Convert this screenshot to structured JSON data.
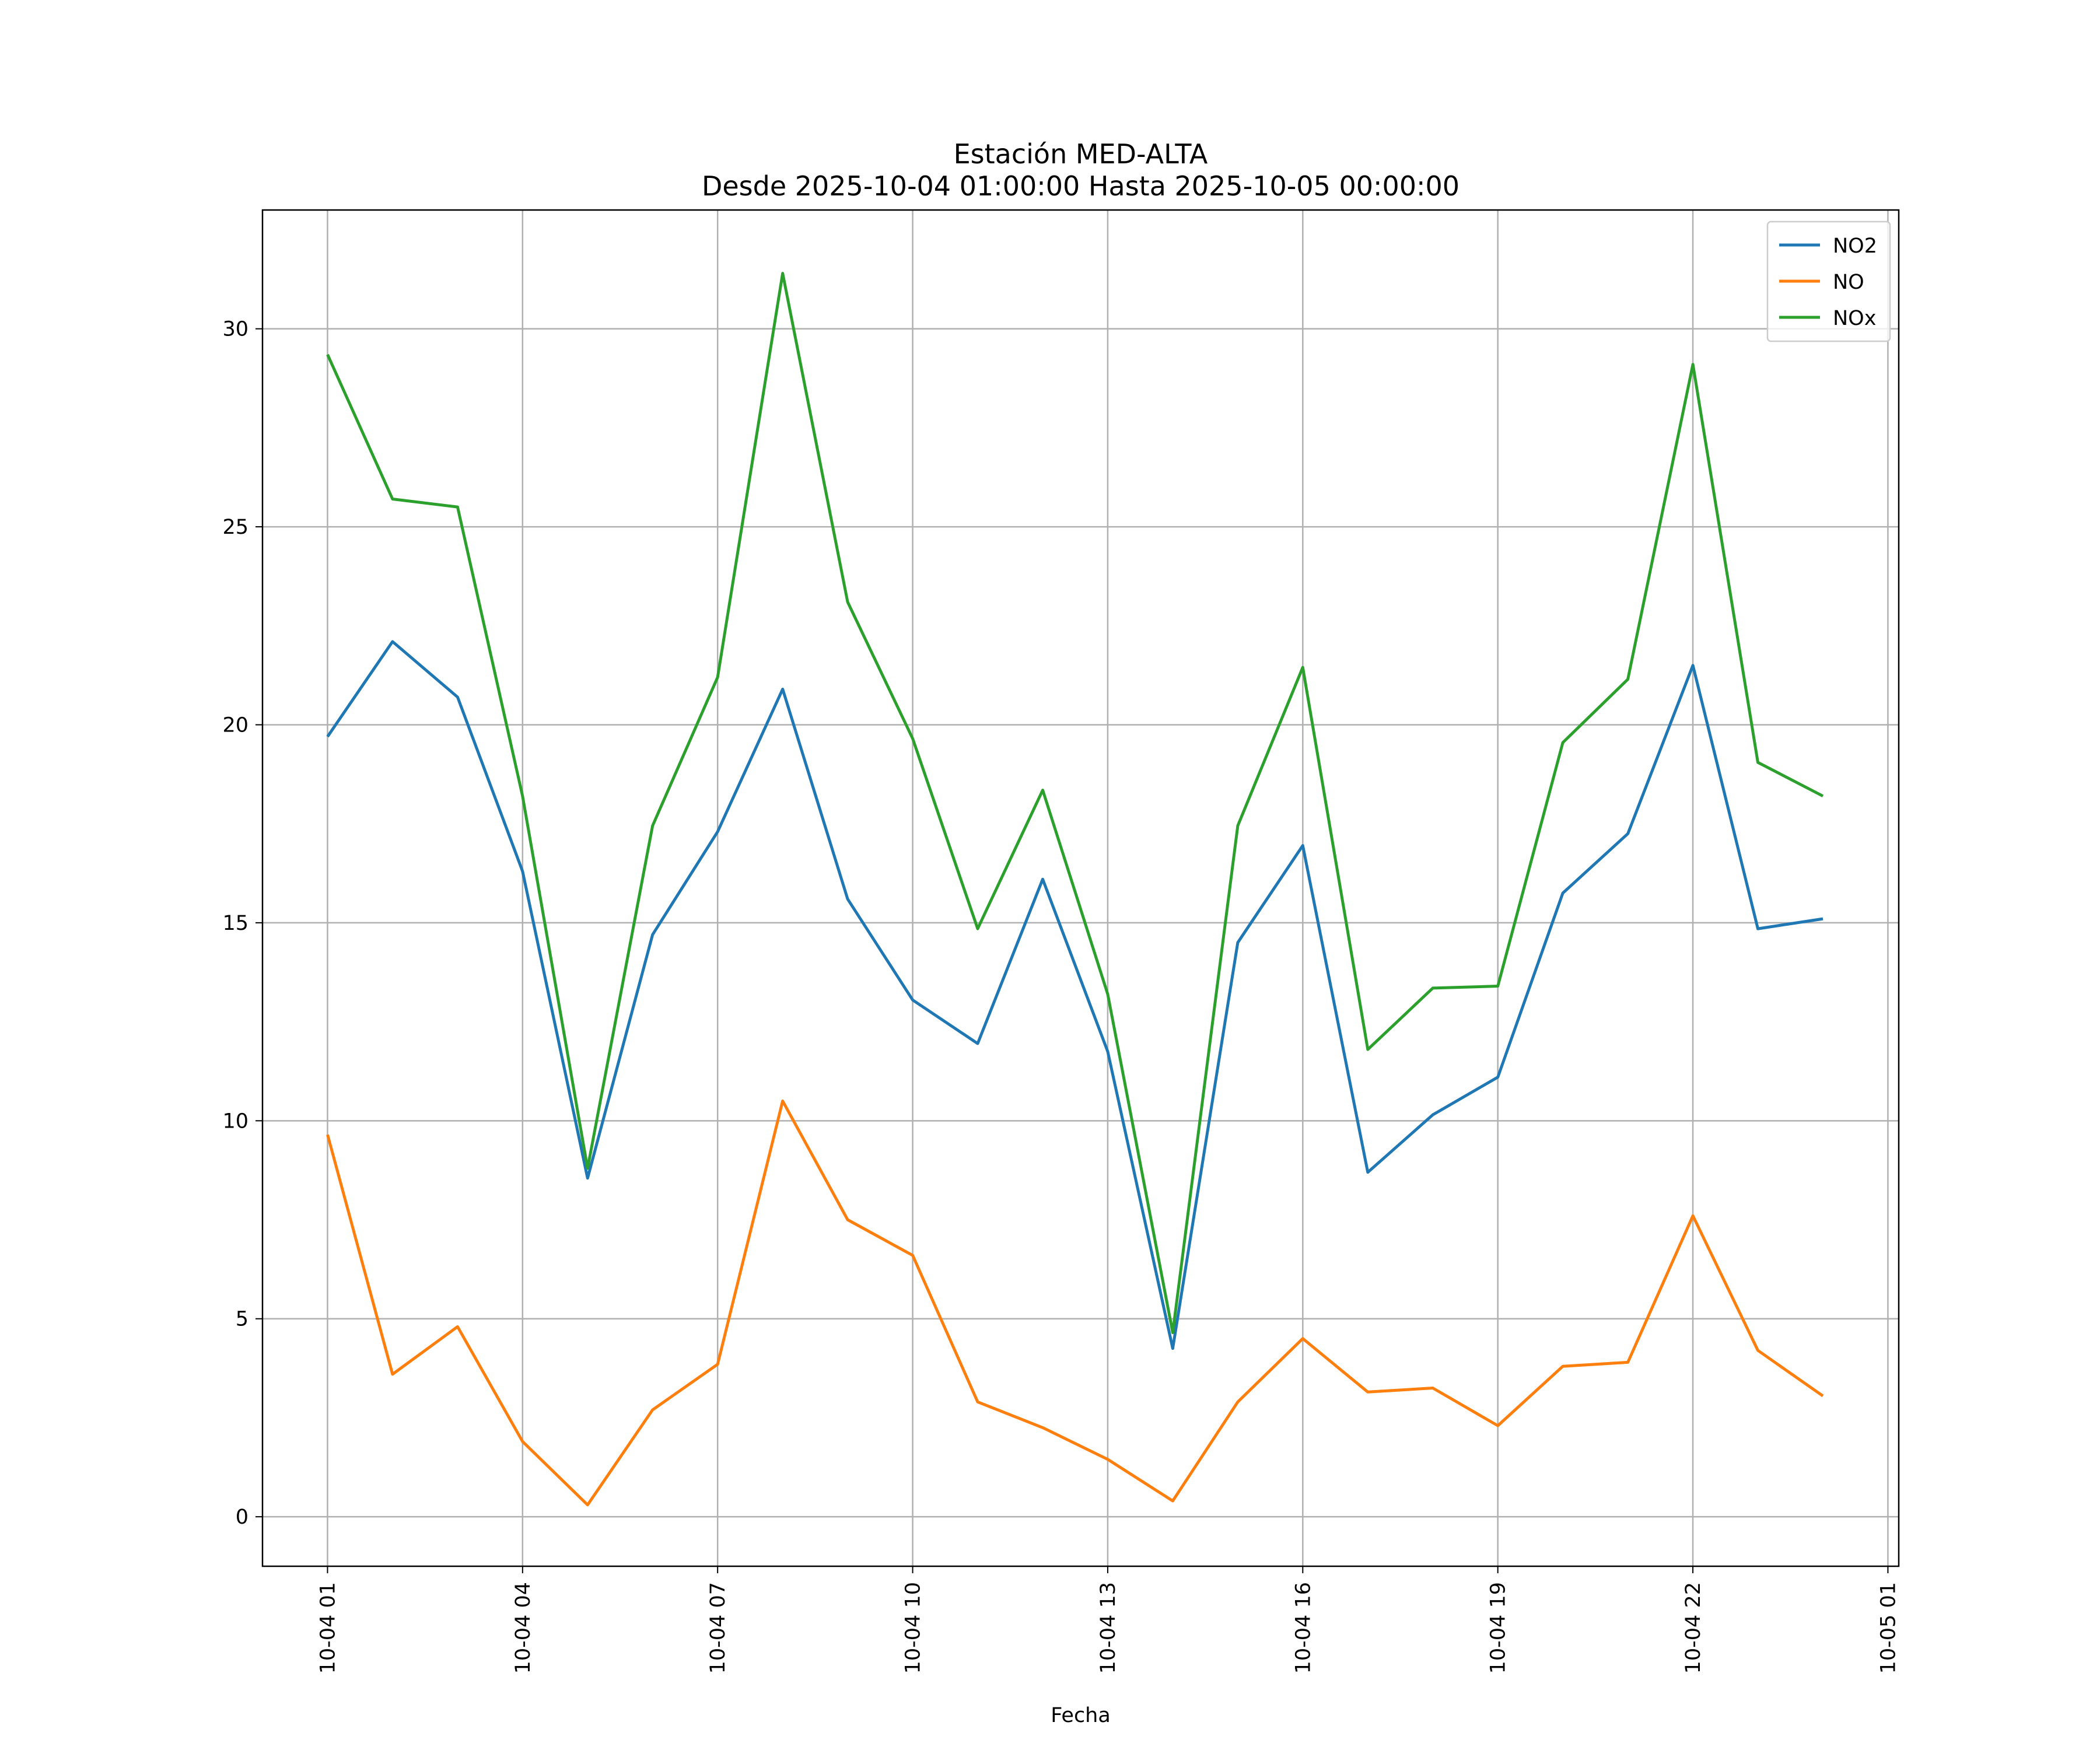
{
  "chart_data": {
    "type": "line",
    "title": "Estación MED-ALTA",
    "subtitle": "Desde 2025-10-04 01:00:00 Hasta 2025-10-05 00:00:00",
    "xlabel": "Fecha",
    "ylabel": "",
    "x": [
      "2025-10-04 01:00",
      "2025-10-04 02:00",
      "2025-10-04 03:00",
      "2025-10-04 04:00",
      "2025-10-04 05:00",
      "2025-10-04 06:00",
      "2025-10-04 07:00",
      "2025-10-04 08:00",
      "2025-10-04 09:00",
      "2025-10-04 10:00",
      "2025-10-04 11:00",
      "2025-10-04 12:00",
      "2025-10-04 13:00",
      "2025-10-04 14:00",
      "2025-10-04 15:00",
      "2025-10-04 16:00",
      "2025-10-04 17:00",
      "2025-10-04 18:00",
      "2025-10-04 19:00",
      "2025-10-04 20:00",
      "2025-10-04 21:00",
      "2025-10-04 22:00",
      "2025-10-04 23:00",
      "2025-10-05 00:00"
    ],
    "xlim": [
      "2025-10-04 00:00",
      "2025-10-05 01:10"
    ],
    "x_tick_labels": [
      "10-04 01",
      "10-04 04",
      "10-04 07",
      "10-04 10",
      "10-04 13",
      "10-04 16",
      "10-04 19",
      "10-04 22",
      "10-05 01"
    ],
    "x_tick_values": [
      "2025-10-04 01:00",
      "2025-10-04 04:00",
      "2025-10-04 07:00",
      "2025-10-04 10:00",
      "2025-10-04 13:00",
      "2025-10-04 16:00",
      "2025-10-04 19:00",
      "2025-10-04 22:00",
      "2025-10-05 01:00"
    ],
    "ylim": [
      -1.25,
      33
    ],
    "y_ticks": [
      0,
      5,
      10,
      15,
      20,
      25,
      30
    ],
    "grid": true,
    "legend_position": "top-right",
    "series": [
      {
        "name": "NO2",
        "color": "#1f77b4",
        "values": [
          19.7,
          22.1,
          20.7,
          16.3,
          8.55,
          14.7,
          17.3,
          20.9,
          15.6,
          13.05,
          11.95,
          16.1,
          11.75,
          4.25,
          14.5,
          16.95,
          8.7,
          10.15,
          11.1,
          15.75,
          17.25,
          21.5,
          14.85,
          15.1
        ]
      },
      {
        "name": "NO",
        "color": "#ff7f0e",
        "values": [
          9.65,
          3.6,
          4.8,
          1.9,
          0.3,
          2.7,
          3.85,
          10.5,
          7.5,
          6.6,
          2.9,
          2.25,
          1.45,
          0.4,
          2.9,
          4.5,
          3.15,
          3.25,
          2.3,
          3.8,
          3.9,
          7.6,
          4.2,
          3.05
        ]
      },
      {
        "name": "NOx",
        "color": "#2ca02c",
        "values": [
          29.35,
          25.7,
          25.5,
          18.2,
          8.8,
          17.45,
          21.2,
          31.4,
          23.1,
          19.65,
          14.85,
          18.35,
          13.2,
          4.65,
          17.45,
          21.45,
          11.8,
          13.35,
          13.4,
          19.55,
          21.15,
          29.1,
          19.05,
          18.2
        ]
      }
    ]
  }
}
